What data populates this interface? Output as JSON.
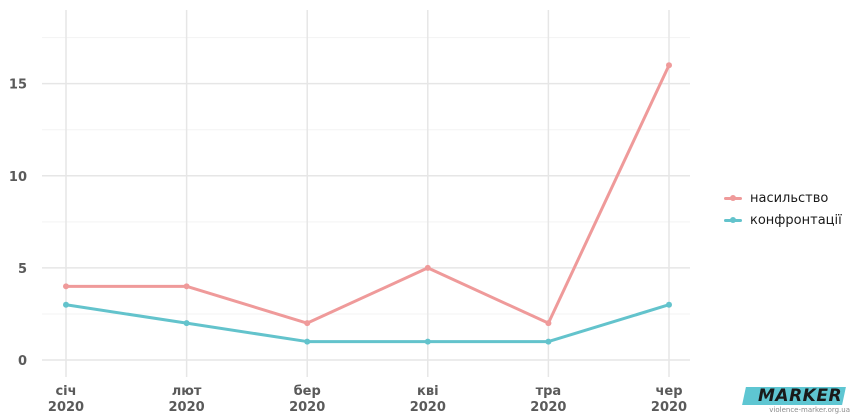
{
  "chart_data": {
    "type": "line",
    "title": "",
    "xlabel": "",
    "ylabel": "",
    "categories": [
      [
        "січ",
        "2020"
      ],
      [
        "лют",
        "2020"
      ],
      [
        "бер",
        "2020"
      ],
      [
        "кві",
        "2020"
      ],
      [
        "тра",
        "2020"
      ],
      [
        "чер",
        "2020"
      ]
    ],
    "y_ticks": [
      0,
      5,
      10,
      15
    ],
    "ylim": [
      0,
      19
    ],
    "grid": true,
    "legend_position": "right",
    "series": [
      {
        "name": "насильство",
        "values": [
          4,
          4,
          2,
          5,
          2,
          16
        ],
        "color": "#ef9a9a"
      },
      {
        "name": "конфронтації",
        "values": [
          3,
          2,
          1,
          1,
          1,
          3
        ],
        "color": "#63c3cc"
      }
    ]
  },
  "logo": {
    "text": "MARKER",
    "url": "violence-marker.org.ua",
    "accent": "#5ec6d2"
  }
}
